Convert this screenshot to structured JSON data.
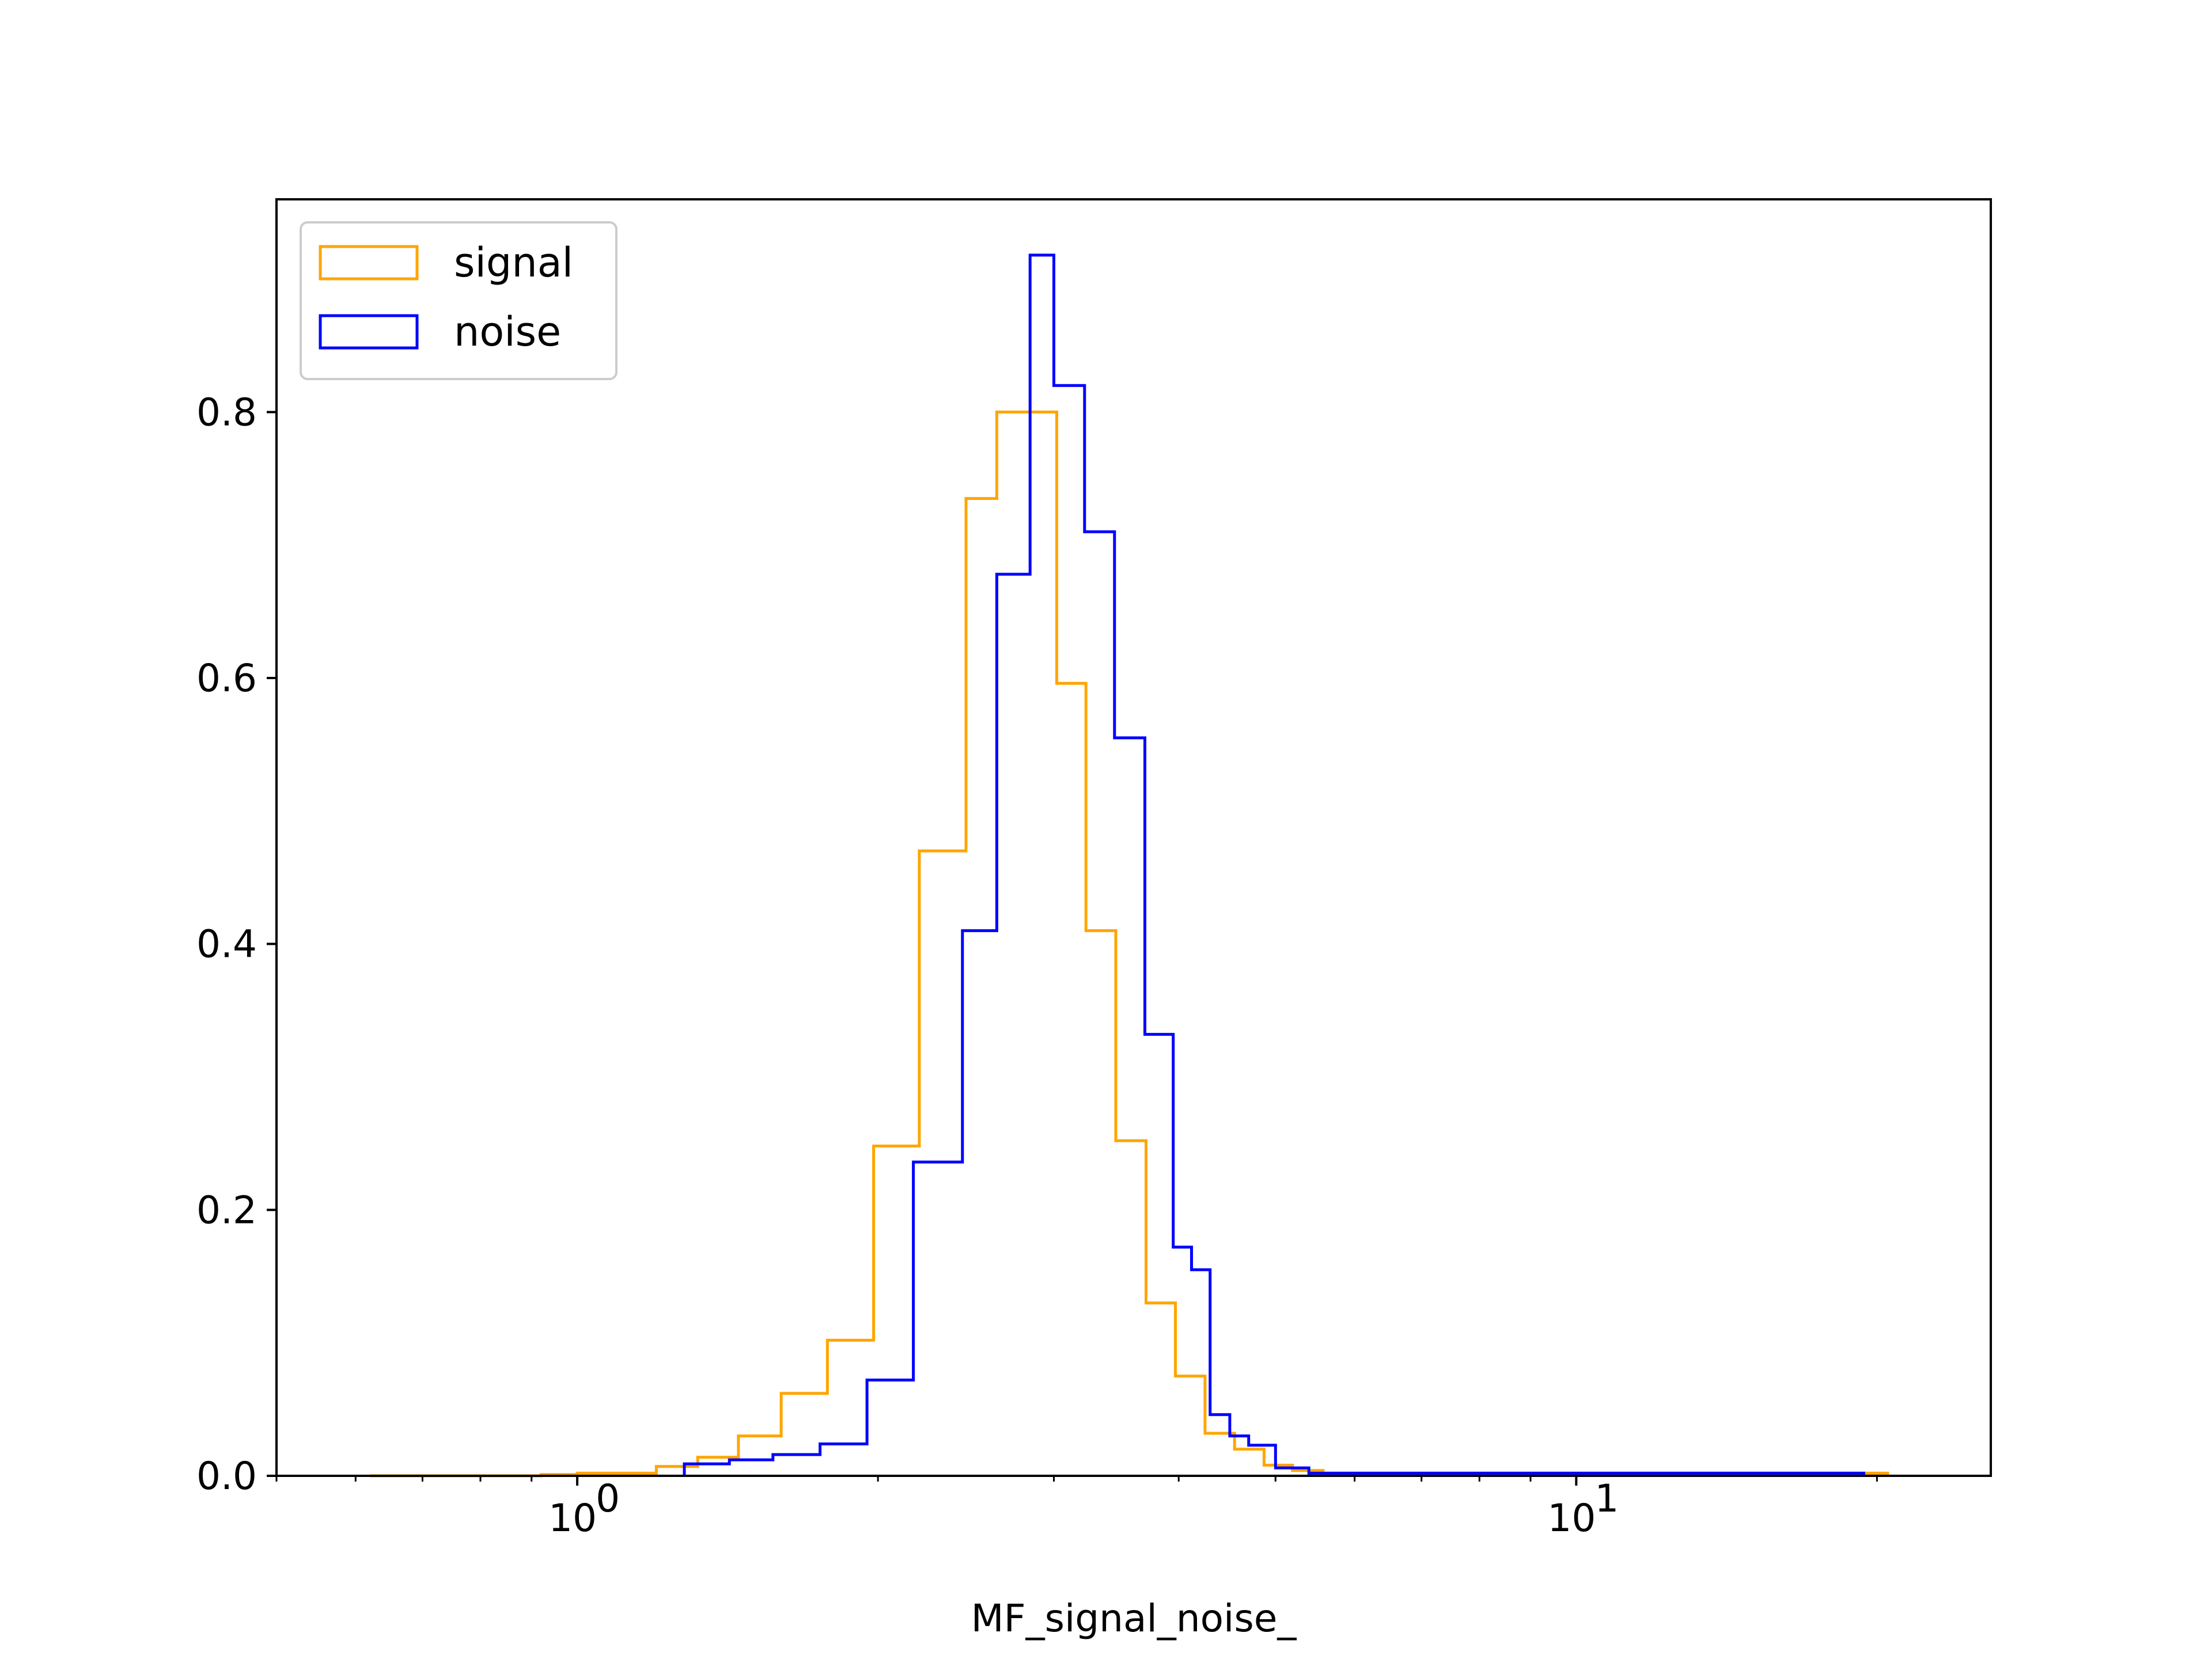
{
  "chart_data": {
    "type": "histogram",
    "title": "",
    "xlabel": "MF_signal_noise_",
    "ylabel": "",
    "xscale": "log",
    "xlim": [
      0.5,
      26
    ],
    "ylim": [
      0,
      0.96
    ],
    "x_major_ticks": [
      {
        "value": 1,
        "label": "10",
        "exponent": "0"
      },
      {
        "value": 10,
        "label": "10",
        "exponent": "1"
      }
    ],
    "y_ticks": [
      {
        "value": 0.0,
        "label": "0.0"
      },
      {
        "value": 0.2,
        "label": "0.2"
      },
      {
        "value": 0.4,
        "label": "0.4"
      },
      {
        "value": 0.6,
        "label": "0.6"
      },
      {
        "value": 0.8,
        "label": "0.8"
      }
    ],
    "grid": false,
    "legend": {
      "position": "top-left"
    },
    "colors": {
      "signal": "#ffa500",
      "noise": "#0000ff"
    },
    "series": [
      {
        "name": "signal",
        "color": "#ffa500",
        "bin_edges": [
          0.62,
          0.75,
          0.87,
          0.92,
          1.0,
          1.2,
          1.32,
          1.45,
          1.6,
          1.78,
          1.98,
          2.2,
          2.45,
          2.63,
          2.82,
          3.02,
          3.23,
          3.46,
          3.71,
          3.97,
          4.25,
          4.55,
          4.87,
          5.2,
          5.58,
          20.5
        ],
        "values": [
          0.0,
          0.0,
          0.0,
          0.001,
          0.002,
          0.007,
          0.014,
          0.03,
          0.062,
          0.102,
          0.248,
          0.47,
          0.735,
          0.8,
          0.8,
          0.596,
          0.41,
          0.252,
          0.13,
          0.075,
          0.032,
          0.02,
          0.008,
          0.004,
          0.002
        ]
      },
      {
        "name": "noise",
        "color": "#0000ff",
        "bin_edges": [
          1.28,
          1.42,
          1.57,
          1.75,
          1.95,
          2.17,
          2.43,
          2.63,
          2.84,
          3.0,
          3.22,
          3.45,
          3.7,
          3.95,
          4.12,
          4.3,
          4.5,
          4.7,
          5.0,
          5.4,
          19.4
        ],
        "values": [
          0.009,
          0.012,
          0.016,
          0.024,
          0.072,
          0.236,
          0.41,
          0.678,
          0.918,
          0.82,
          0.71,
          0.555,
          0.332,
          0.172,
          0.155,
          0.046,
          0.03,
          0.023,
          0.006,
          0.002
        ]
      }
    ]
  }
}
